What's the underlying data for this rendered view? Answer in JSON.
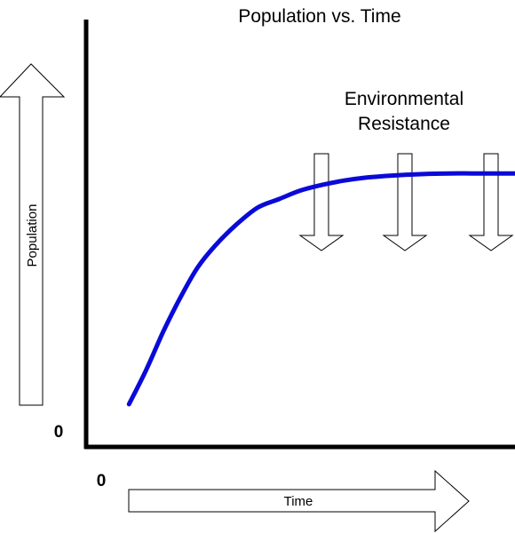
{
  "chart_data": {
    "type": "line",
    "title": "Population vs. Time",
    "xlabel": "Time",
    "ylabel": "Population",
    "x_origin_label": "0",
    "y_origin_label": "0",
    "annotation_lines": [
      "Environmental",
      "Resistance"
    ],
    "annotation_arrow_count": 3,
    "grid": false,
    "xlim": [
      0,
      100
    ],
    "ylim": [
      0,
      100
    ],
    "series": [
      {
        "color": "#0a0ad8",
        "x": [
          10,
          14,
          18,
          22,
          26,
          30,
          35,
          40,
          45,
          50,
          55,
          60,
          65,
          70,
          75,
          80,
          85,
          90,
          95,
          100
        ],
        "y": [
          10,
          18,
          27,
          35,
          42,
          47,
          52,
          56,
          58,
          60,
          61.3,
          62.3,
          63,
          63.4,
          63.7,
          63.9,
          64,
          64,
          64,
          64
        ]
      }
    ]
  }
}
